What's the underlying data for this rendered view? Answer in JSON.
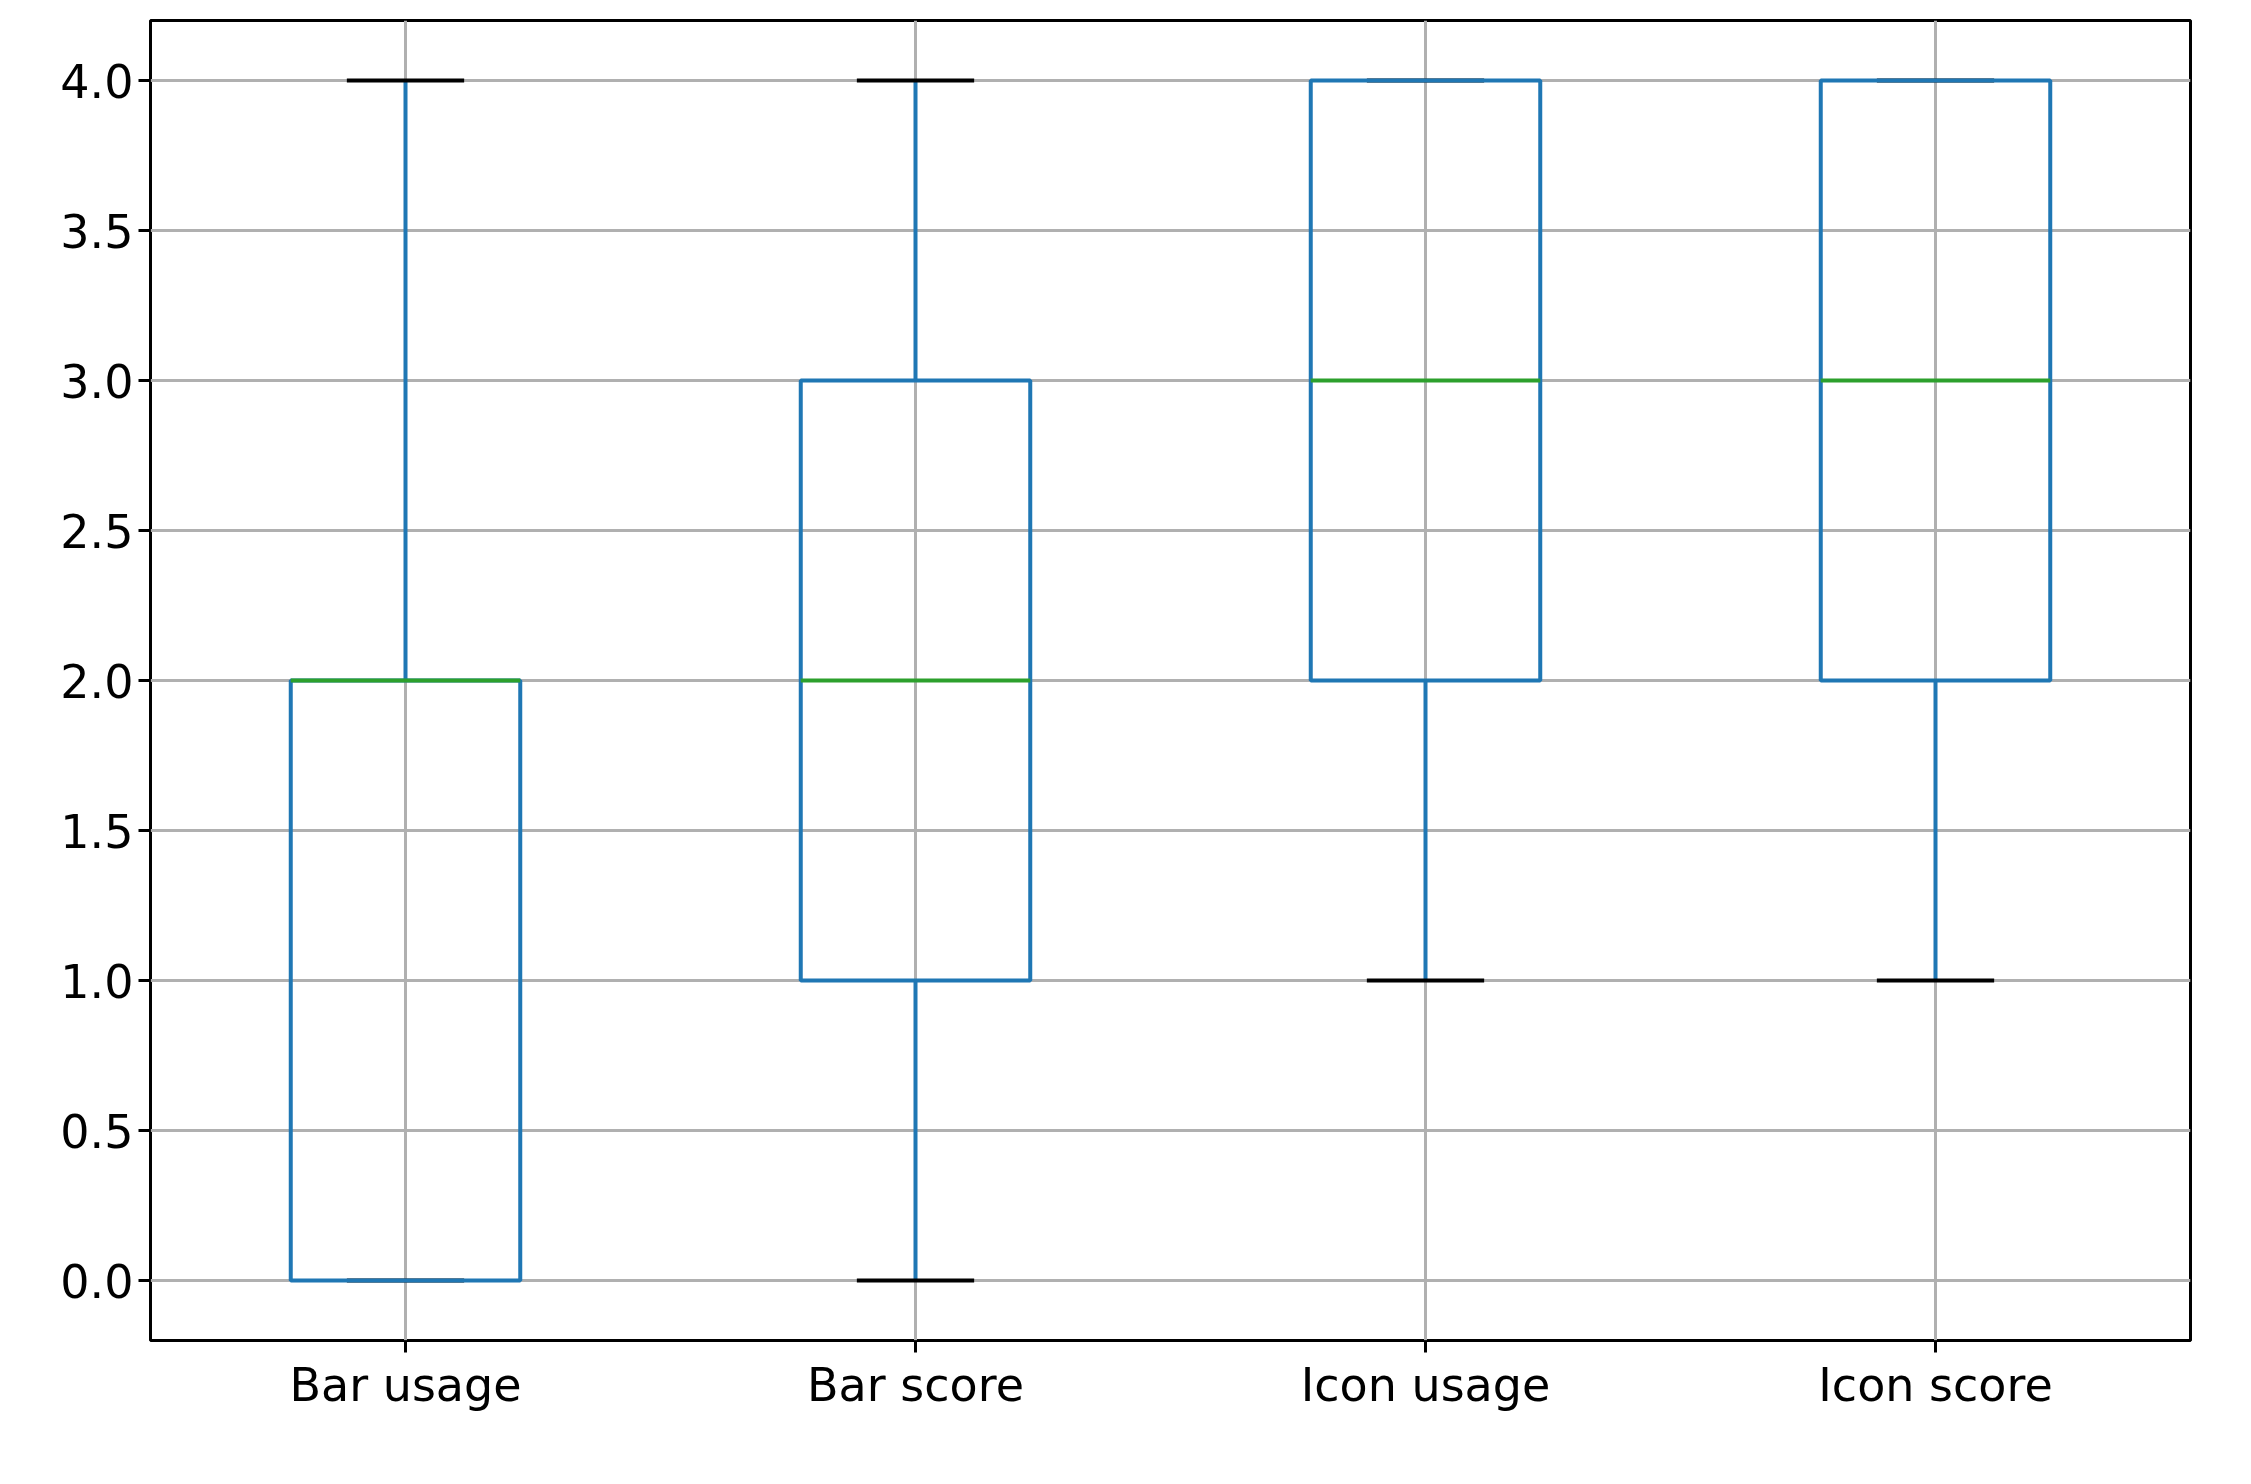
{
  "chart_data": {
    "type": "box",
    "categories": [
      "Bar usage",
      "Bar score",
      "Icon usage",
      "Icon score"
    ],
    "boxes": [
      {
        "low": 0,
        "q1": 0,
        "median": 2,
        "q3": 2,
        "high": 4
      },
      {
        "low": 0,
        "q1": 1,
        "median": 2,
        "q3": 3,
        "high": 4
      },
      {
        "low": 1,
        "q1": 2,
        "median": 3,
        "q3": 4,
        "high": 4
      },
      {
        "low": 1,
        "q1": 2,
        "median": 3,
        "q3": 4,
        "high": 4
      }
    ],
    "color": "#1f77b4",
    "ylim": [
      -0.2,
      4.2
    ],
    "yticks": [
      {
        "value": 0,
        "label": "0.0"
      },
      {
        "value": 0.5,
        "label": "0.5"
      },
      {
        "value": 1,
        "label": "1.0"
      },
      {
        "value": 1.5,
        "label": "1.5"
      },
      {
        "value": 2,
        "label": "2.0"
      },
      {
        "value": 2.5,
        "label": "2.5"
      },
      {
        "value": 3,
        "label": "3.0"
      },
      {
        "value": 3.5,
        "label": "3.5"
      },
      {
        "value": 4,
        "label": "4.0"
      }
    ],
    "grid": true
  }
}
